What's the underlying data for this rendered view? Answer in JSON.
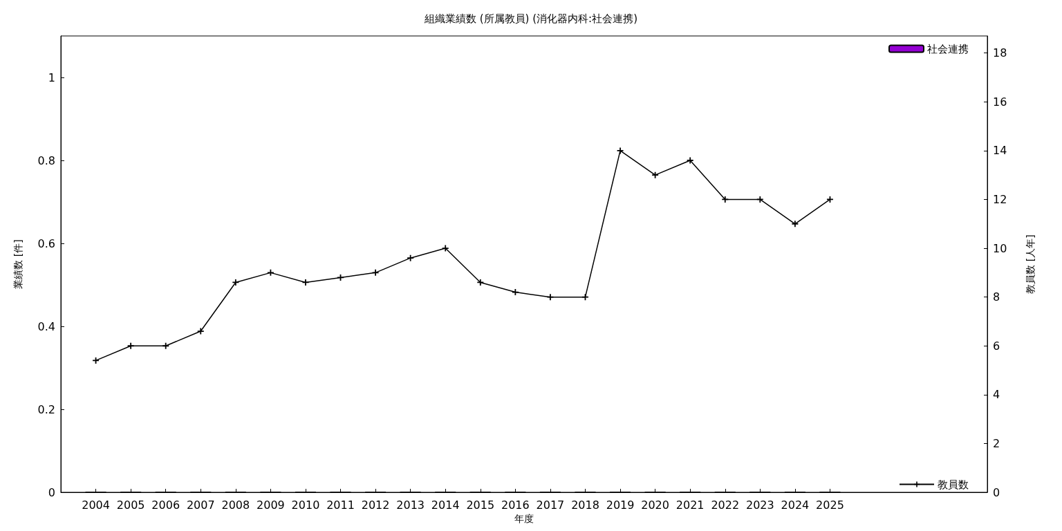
{
  "chart_data": {
    "type": "bar",
    "title": "組織業績数 (所属教員) (消化器内科:社会連携)",
    "xlabel": "年度",
    "ylabel": "業績数 [件]",
    "y2label": "教員数 [人年]",
    "x": [
      2004,
      2005,
      2006,
      2007,
      2008,
      2009,
      2010,
      2011,
      2012,
      2013,
      2014,
      2015,
      2016,
      2017,
      2018,
      2019,
      2020,
      2021,
      2022,
      2023,
      2024,
      2025
    ],
    "xlim": [
      2003,
      2029.5
    ],
    "xticks": [
      2004,
      2005,
      2006,
      2007,
      2008,
      2009,
      2010,
      2011,
      2012,
      2013,
      2014,
      2015,
      2016,
      2017,
      2018,
      2019,
      2020,
      2021,
      2022,
      2023,
      2024,
      2025
    ],
    "ylim": [
      0,
      1.1
    ],
    "yticks": [
      0,
      0.2,
      0.4,
      0.6,
      0.8,
      1
    ],
    "y2lim": [
      0,
      18.7
    ],
    "y2ticks": [
      0,
      2,
      4,
      6,
      8,
      10,
      12,
      14,
      16,
      18
    ],
    "series": [
      {
        "name": "社会連携",
        "color": "#9400d3",
        "values": [
          0,
          0,
          0,
          0,
          0,
          0,
          0,
          0,
          0,
          0,
          0,
          0,
          0,
          0,
          0,
          0,
          0,
          0,
          0,
          0,
          0,
          0
        ]
      },
      {
        "name": "教員数",
        "type": "line",
        "axis": "y2",
        "color": "#000000",
        "marker": "cross",
        "line_style": "solid",
        "values": [
          5.4,
          6,
          6,
          6.6,
          8.6,
          9,
          8.6,
          8.8,
          9,
          9.6,
          10,
          8.6,
          8.2,
          8,
          8,
          14,
          13,
          13.6,
          12,
          12,
          11,
          12
        ]
      }
    ],
    "grid": false,
    "legend": "right"
  }
}
